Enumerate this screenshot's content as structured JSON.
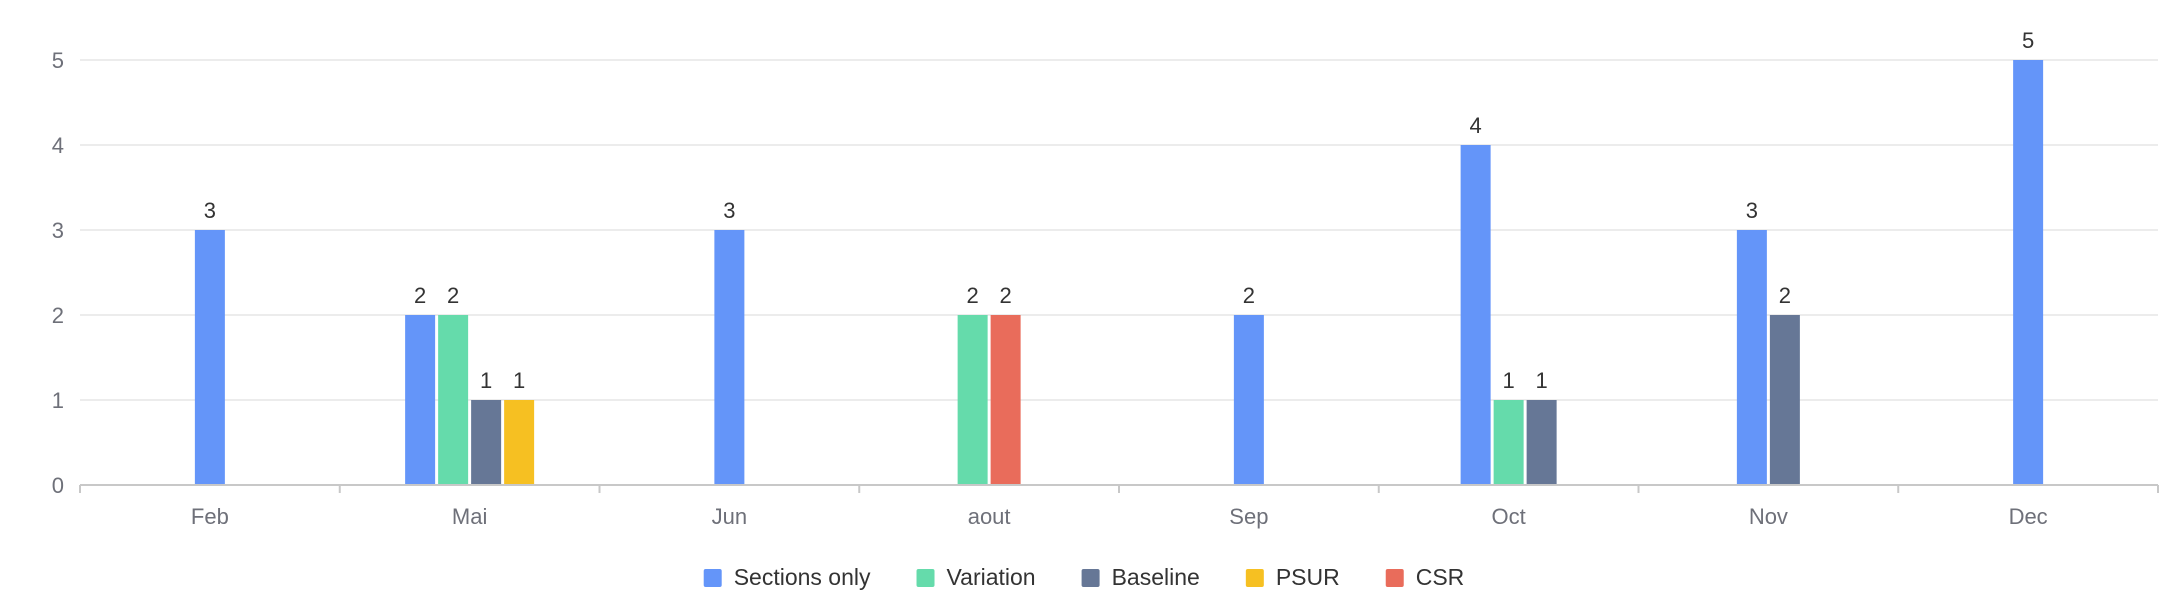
{
  "chart_data": {
    "type": "bar",
    "categories": [
      "Feb",
      "Mai",
      "Jun",
      "aout",
      "Sep",
      "Oct",
      "Nov",
      "Dec"
    ],
    "series": [
      {
        "name": "Sections only",
        "color": "#6495f9",
        "values": [
          3,
          2,
          3,
          null,
          2,
          4,
          3,
          5
        ]
      },
      {
        "name": "Variation",
        "color": "#65dbab",
        "values": [
          null,
          2,
          null,
          2,
          null,
          1,
          null,
          null
        ]
      },
      {
        "name": "Baseline",
        "color": "#667796",
        "values": [
          null,
          1,
          null,
          null,
          null,
          1,
          2,
          null
        ]
      },
      {
        "name": "PSUR",
        "color": "#f6c022",
        "values": [
          null,
          1,
          null,
          null,
          null,
          null,
          null,
          null
        ]
      },
      {
        "name": "CSR",
        "color": "#e96c5b",
        "values": [
          null,
          null,
          null,
          2,
          null,
          null,
          null,
          null
        ]
      }
    ],
    "y_ticks": [
      0,
      1,
      2,
      3,
      4,
      5
    ],
    "ylim": [
      0,
      5
    ],
    "grid": true,
    "data_labels": true,
    "legend_position": "bottom-center",
    "title": "",
    "xlabel": "",
    "ylabel": ""
  }
}
